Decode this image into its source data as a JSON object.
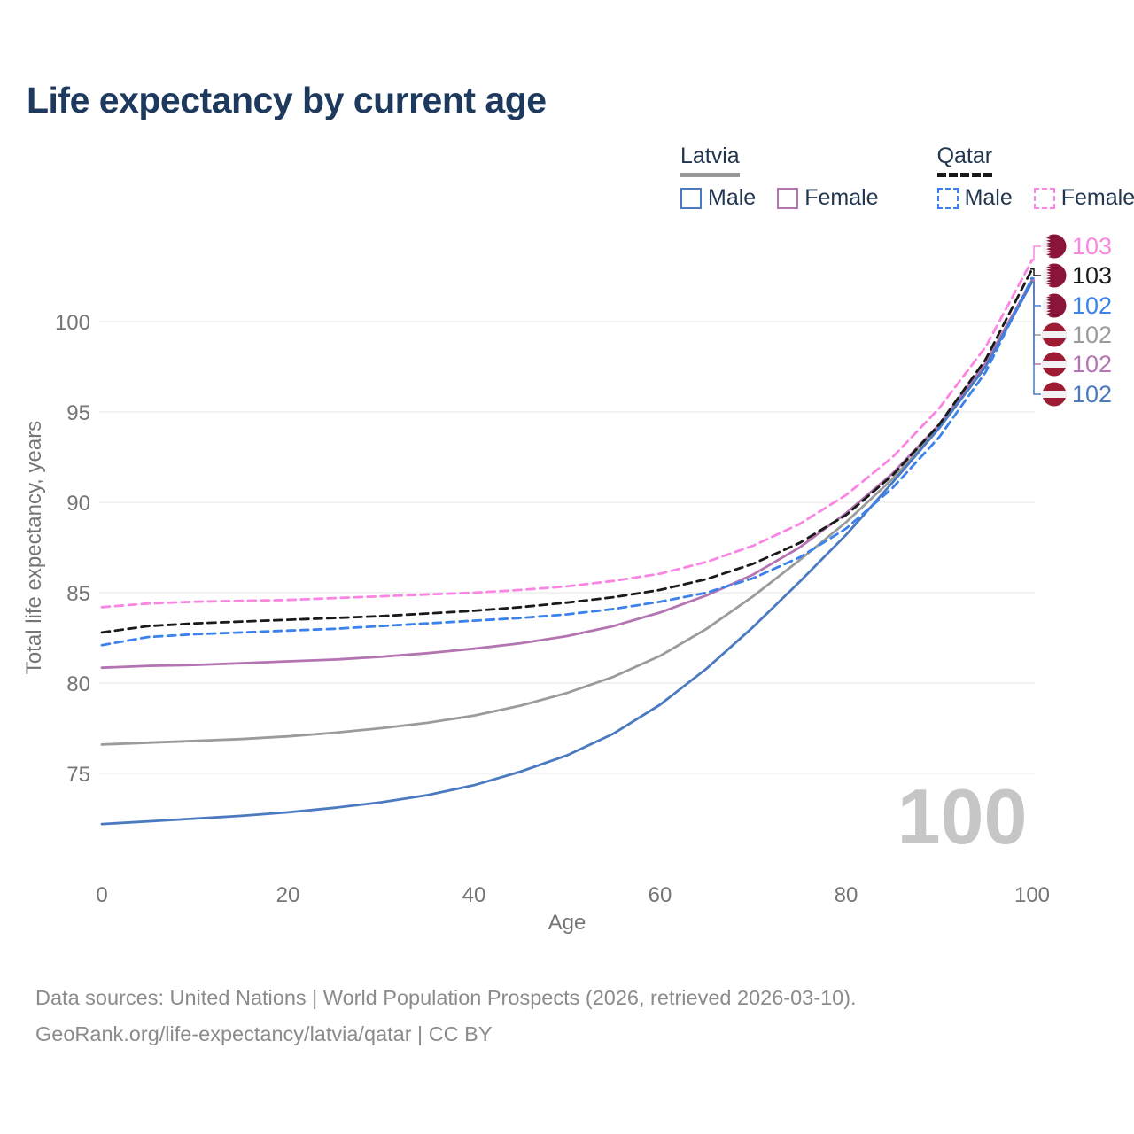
{
  "title": "Life expectancy by current age",
  "legend": {
    "groups": [
      {
        "label": "Latvia",
        "style": "solid",
        "items": [
          {
            "label": "Male",
            "color_key": "latvia_male"
          },
          {
            "label": "Female",
            "color_key": "latvia_female"
          }
        ]
      },
      {
        "label": "Qatar",
        "style": "dashed",
        "items": [
          {
            "label": "Male",
            "color_key": "qatar_male"
          },
          {
            "label": "Female",
            "color_key": "qatar_female"
          }
        ]
      }
    ]
  },
  "colors": {
    "latvia_male": "#4b7ac0",
    "latvia_female": "#b474b2",
    "latvia_total": "#9b9b9b",
    "qatar_male": "#3b82ec",
    "qatar_female": "#fa85e2",
    "qatar_total": "#1a1a1a",
    "title_text": "#1d3a5e",
    "axis_text": "#757575",
    "gridline": "#e9e9e9",
    "watermark": "#c6c6c6",
    "latvia_flag_red": "#9e1b34",
    "qatar_flag_maroon": "#8a1538"
  },
  "watermark": "100",
  "footer": {
    "line1": "Data sources: United Nations | World Population Prospects (2026, retrieved 2026-03-10).",
    "line2": "GeoRank.org/life-expectancy/latvia/qatar | CC BY"
  },
  "chart_data": {
    "type": "line",
    "title": "Life expectancy by current age",
    "xlabel": "Age",
    "ylabel": "Total life expectancy, years",
    "x": [
      0,
      5,
      10,
      15,
      20,
      25,
      30,
      35,
      40,
      45,
      50,
      55,
      60,
      65,
      70,
      75,
      80,
      85,
      90,
      95,
      100
    ],
    "xticks": [
      0,
      20,
      40,
      60,
      80,
      100
    ],
    "yticks": [
      75,
      80,
      85,
      90,
      95,
      100
    ],
    "ylim": [
      71.5,
      104
    ],
    "grid": "horizontal",
    "legend_position": "top-right",
    "series": [
      {
        "name": "Latvia Total",
        "country": "Latvia",
        "sex": "Total",
        "style": "solid",
        "color_key": "latvia_total",
        "values": [
          76.6,
          76.7,
          76.8,
          76.9,
          77.05,
          77.25,
          77.5,
          77.8,
          78.2,
          78.75,
          79.45,
          80.35,
          81.5,
          83.0,
          84.8,
          86.8,
          88.9,
          91.3,
          94.15,
          97.55,
          102.25
        ],
        "end_label": "102",
        "end_flag": "latvia"
      },
      {
        "name": "Latvia Female",
        "country": "Latvia",
        "sex": "Female",
        "style": "solid",
        "color_key": "latvia_female",
        "values": [
          80.85,
          80.95,
          81.0,
          81.1,
          81.2,
          81.3,
          81.45,
          81.65,
          81.9,
          82.2,
          82.6,
          83.15,
          83.9,
          84.85,
          86.0,
          87.5,
          89.4,
          91.6,
          94.3,
          97.7,
          102.3
        ],
        "end_label": "102",
        "end_flag": "latvia"
      },
      {
        "name": "Latvia Male",
        "country": "Latvia",
        "sex": "Male",
        "style": "solid",
        "color_key": "latvia_male",
        "values": [
          72.2,
          72.35,
          72.5,
          72.65,
          72.85,
          73.1,
          73.4,
          73.8,
          74.35,
          75.1,
          76.0,
          77.2,
          78.8,
          80.8,
          83.1,
          85.6,
          88.2,
          91.1,
          94.1,
          97.5,
          102.2
        ],
        "end_label": "102",
        "end_flag": "latvia"
      },
      {
        "name": "Qatar Total",
        "country": "Qatar",
        "sex": "Total",
        "style": "dashed",
        "color_key": "qatar_total",
        "values": [
          82.8,
          83.15,
          83.3,
          83.4,
          83.5,
          83.6,
          83.7,
          83.85,
          84.0,
          84.2,
          84.45,
          84.75,
          85.15,
          85.75,
          86.6,
          87.75,
          89.3,
          91.5,
          94.3,
          97.9,
          102.9
        ],
        "end_label": "103",
        "end_flag": "qatar"
      },
      {
        "name": "Qatar Male",
        "country": "Qatar",
        "sex": "Male",
        "style": "dashed",
        "color_key": "qatar_male",
        "values": [
          82.1,
          82.55,
          82.7,
          82.8,
          82.9,
          83.0,
          83.15,
          83.3,
          83.45,
          83.6,
          83.8,
          84.1,
          84.5,
          85.0,
          85.8,
          86.95,
          88.55,
          90.8,
          93.6,
          97.2,
          102.4
        ],
        "end_label": "102",
        "end_flag": "qatar"
      },
      {
        "name": "Qatar Female",
        "country": "Qatar",
        "sex": "Female",
        "style": "dashed",
        "color_key": "qatar_female",
        "values": [
          84.2,
          84.4,
          84.5,
          84.55,
          84.6,
          84.7,
          84.8,
          84.9,
          85.0,
          85.15,
          85.35,
          85.65,
          86.05,
          86.7,
          87.6,
          88.8,
          90.4,
          92.5,
          95.2,
          98.6,
          103.4
        ],
        "end_label": "103",
        "end_flag": "qatar"
      }
    ],
    "end_label_order": [
      "Qatar Female",
      "Qatar Total",
      "Qatar Male",
      "Latvia Total",
      "Latvia Female",
      "Latvia Male"
    ]
  }
}
